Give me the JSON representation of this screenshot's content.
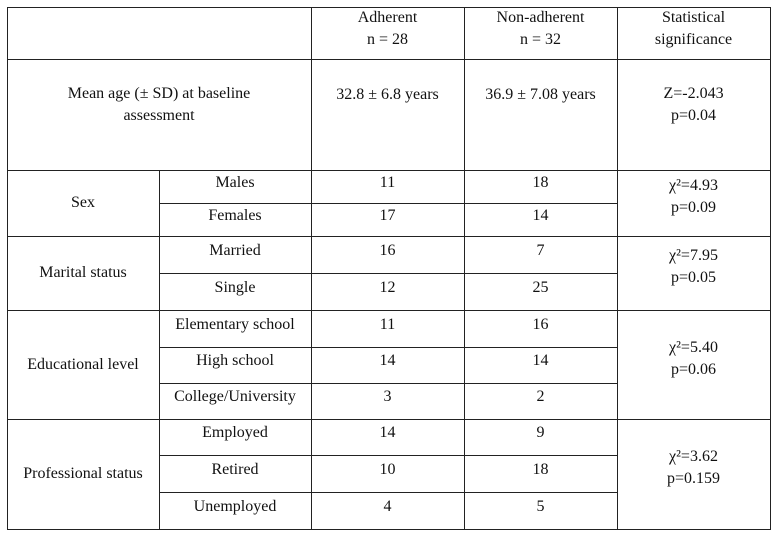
{
  "header": {
    "columns": [
      {
        "title": "Adherent",
        "n": "n = 28"
      },
      {
        "title": "Non-adherent",
        "n": "n = 32"
      },
      {
        "title": "Statistical significance"
      }
    ]
  },
  "age": {
    "label": "Mean age (± SD) at baseline assessment",
    "adherent": "32.8 ± 6.8 years",
    "non_adherent": "36.9 ± 7.08 years",
    "test": "Z=-2.043",
    "p": "p=0.04"
  },
  "groups": [
    {
      "label": "Sex",
      "rows": [
        {
          "label": "Males",
          "adherent": 11,
          "non_adherent": 18
        },
        {
          "label": "Females",
          "adherent": 17,
          "non_adherent": 14
        }
      ],
      "test": "χ²=4.93",
      "p": "p=0.09"
    },
    {
      "label": "Marital status",
      "rows": [
        {
          "label": "Married",
          "adherent": 16,
          "non_adherent": 7
        },
        {
          "label": "Single",
          "adherent": 12,
          "non_adherent": 25
        }
      ],
      "test": "χ²=7.95",
      "p": "p=0.05"
    },
    {
      "label": "Educational level",
      "rows": [
        {
          "label": "Elementary school",
          "adherent": 11,
          "non_adherent": 16
        },
        {
          "label": "High school",
          "adherent": 14,
          "non_adherent": 14
        },
        {
          "label": "College/University",
          "adherent": 3,
          "non_adherent": 2
        }
      ],
      "test": "χ²=5.40",
      "p": "p=0.06"
    },
    {
      "label": "Professional status",
      "rows": [
        {
          "label": "Employed",
          "adherent": 14,
          "non_adherent": 9
        },
        {
          "label": "Retired",
          "adherent": 10,
          "non_adherent": 18
        },
        {
          "label": "Unemployed",
          "adherent": 4,
          "non_adherent": 5
        }
      ],
      "test": "χ²=3.62",
      "p": "p=0.159"
    }
  ]
}
